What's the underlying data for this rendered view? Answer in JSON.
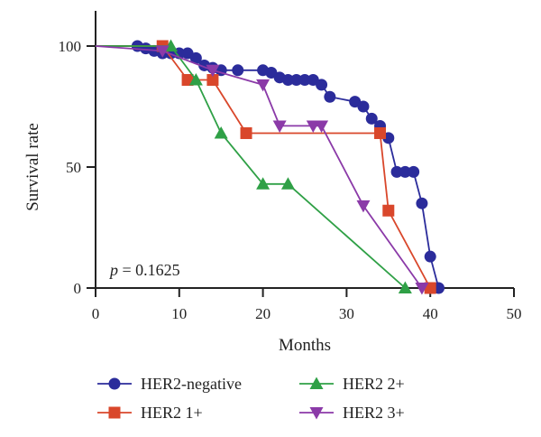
{
  "chart_data": {
    "type": "line",
    "xlabel": "Months",
    "ylabel": "Survival rate",
    "xlim": [
      0,
      50
    ],
    "ylim": [
      0,
      100
    ],
    "xticks": [
      0,
      10,
      20,
      30,
      40,
      50
    ],
    "yticks": [
      0,
      50,
      100
    ],
    "grid": false,
    "legend_position": "bottom",
    "annotation": {
      "italic": "p",
      "rest": " = 0.1625"
    },
    "series": [
      {
        "name": "HER2-negative",
        "color": "#2b2c9b",
        "marker": "circle",
        "points": [
          [
            0,
            100
          ],
          [
            5,
            100
          ],
          [
            6,
            99
          ],
          [
            7,
            98
          ],
          [
            8,
            97
          ],
          [
            9,
            97
          ],
          [
            10,
            97
          ],
          [
            11,
            97
          ],
          [
            12,
            95
          ],
          [
            13,
            92
          ],
          [
            14,
            91
          ],
          [
            15,
            90
          ],
          [
            17,
            90
          ],
          [
            20,
            90
          ],
          [
            21,
            89
          ],
          [
            22,
            87
          ],
          [
            23,
            86
          ],
          [
            24,
            86
          ],
          [
            25,
            86
          ],
          [
            26,
            86
          ],
          [
            27,
            84
          ],
          [
            28,
            79
          ],
          [
            31,
            77
          ],
          [
            32,
            75
          ],
          [
            33,
            70
          ],
          [
            34,
            67
          ],
          [
            35,
            62
          ],
          [
            36,
            48
          ],
          [
            37,
            48
          ],
          [
            38,
            48
          ],
          [
            39,
            35
          ],
          [
            40,
            13
          ],
          [
            41,
            0
          ]
        ]
      },
      {
        "name": "HER2 1+",
        "color": "#d9472b",
        "marker": "square",
        "points": [
          [
            0,
            100
          ],
          [
            8,
            100
          ],
          [
            11,
            86
          ],
          [
            14,
            86
          ],
          [
            18,
            64
          ],
          [
            34,
            64
          ],
          [
            35,
            32
          ],
          [
            40,
            0
          ]
        ]
      },
      {
        "name": "HER2 2+",
        "color": "#2fa046",
        "marker": "triangle-up",
        "points": [
          [
            0,
            100
          ],
          [
            9,
            100
          ],
          [
            12,
            86
          ],
          [
            15,
            64
          ],
          [
            20,
            43
          ],
          [
            23,
            43
          ],
          [
            37,
            0
          ]
        ]
      },
      {
        "name": "HER2 3+",
        "color": "#8b3aa8",
        "marker": "triangle-down",
        "points": [
          [
            0,
            100
          ],
          [
            8,
            98
          ],
          [
            14,
            90
          ],
          [
            20,
            84
          ],
          [
            22,
            67
          ],
          [
            26,
            67
          ],
          [
            27,
            67
          ],
          [
            32,
            34
          ],
          [
            39,
            0
          ]
        ]
      }
    ]
  }
}
